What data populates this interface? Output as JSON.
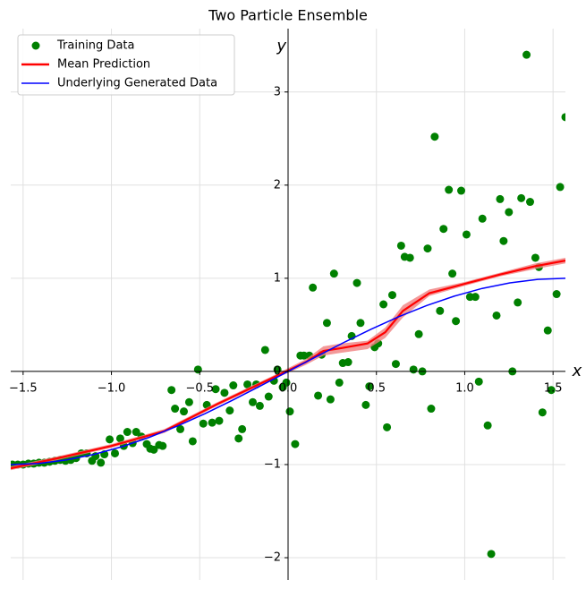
{
  "chart_data": {
    "type": "scatter",
    "title": "Two Particle Ensemble",
    "xlabel": "x",
    "ylabel": "y",
    "xlim": [
      -1.57,
      1.57
    ],
    "ylim": [
      -2.24,
      3.68
    ],
    "xticks": [
      {
        "value": -1.5,
        "label": "−1.5"
      },
      {
        "value": -1.0,
        "label": "−1.0"
      },
      {
        "value": -0.5,
        "label": "−0.5"
      },
      {
        "value": 0,
        "label": "0.0"
      },
      0.5,
      {
        "value": 1.0,
        "label": "1.0"
      },
      1.5
    ],
    "yticks": [
      {
        "value": -2,
        "label": "−2"
      },
      {
        "value": -1,
        "label": "−1"
      },
      0,
      1,
      2,
      3
    ],
    "grid": true,
    "legend": "upper left",
    "series": [
      {
        "name": "Training Data",
        "type": "scatter",
        "color": "#008000",
        "x": [
          -1.56,
          -1.53,
          -1.5,
          -1.47,
          -1.44,
          -1.41,
          -1.38,
          -1.35,
          -1.32,
          -1.29,
          -1.26,
          -1.23,
          -1.2,
          -1.17,
          -1.14,
          -1.11,
          -1.09,
          -1.06,
          -1.04,
          -1.01,
          -0.98,
          -0.95,
          -0.93,
          -0.91,
          -0.88,
          -0.86,
          -0.83,
          -0.8,
          -0.78,
          -0.76,
          -0.73,
          -0.71,
          -0.66,
          -0.64,
          -0.61,
          -0.59,
          -0.56,
          -0.54,
          -0.51,
          -0.48,
          -0.46,
          -0.43,
          -0.41,
          -0.39,
          -0.36,
          -0.33,
          -0.31,
          -0.28,
          -0.26,
          -0.23,
          -0.2,
          -0.18,
          -0.16,
          -0.13,
          -0.11,
          -0.08,
          -0.06,
          -0.03,
          -0.01,
          0.01,
          0.04,
          0.07,
          0.09,
          0.12,
          0.14,
          0.17,
          0.19,
          0.22,
          0.24,
          0.26,
          0.29,
          0.31,
          0.34,
          0.36,
          0.39,
          0.41,
          0.44,
          0.46,
          0.49,
          0.51,
          0.54,
          0.56,
          0.59,
          0.61,
          0.64,
          0.66,
          0.69,
          0.71,
          0.74,
          0.76,
          0.79,
          0.81,
          0.83,
          0.86,
          0.88,
          0.91,
          0.93,
          0.95,
          0.98,
          1.01,
          1.03,
          1.06,
          1.08,
          1.1,
          1.13,
          1.15,
          1.18,
          1.2,
          1.22,
          1.25,
          1.27,
          1.3,
          1.32,
          1.35,
          1.37,
          1.4,
          1.42,
          1.44,
          1.47,
          1.49,
          1.52,
          1.54,
          1.57
        ],
        "values": [
          -1.0,
          -1.0,
          -1.0,
          -0.99,
          -0.99,
          -0.98,
          -0.98,
          -0.97,
          -0.96,
          -0.95,
          -0.96,
          -0.95,
          -0.93,
          -0.88,
          -0.88,
          -0.96,
          -0.91,
          -0.98,
          -0.89,
          -0.73,
          -0.88,
          -0.72,
          -0.8,
          -0.65,
          -0.77,
          -0.65,
          -0.7,
          -0.78,
          -0.83,
          -0.84,
          -0.79,
          -0.8,
          -0.2,
          -0.4,
          -0.62,
          -0.43,
          -0.33,
          -0.75,
          0.02,
          -0.56,
          -0.36,
          -0.55,
          -0.19,
          -0.53,
          -0.23,
          -0.42,
          -0.15,
          -0.72,
          -0.62,
          -0.14,
          -0.33,
          -0.14,
          -0.37,
          0.23,
          -0.27,
          -0.1,
          0.02,
          -0.17,
          -0.12,
          -0.43,
          -0.78,
          0.17,
          0.17,
          0.17,
          0.9,
          -0.26,
          0.18,
          0.52,
          -0.3,
          1.05,
          -0.12,
          0.09,
          0.1,
          0.38,
          0.95,
          0.52,
          -0.36,
          -0.16,
          0.26,
          0.3,
          0.72,
          -0.6,
          0.82,
          0.08,
          1.35,
          1.23,
          1.22,
          0.02,
          0.4,
          0.0,
          1.32,
          -0.4,
          2.52,
          0.65,
          1.53,
          1.95,
          1.05,
          0.54,
          1.94,
          1.47,
          0.8,
          0.8,
          -0.11,
          1.64,
          -0.58,
          -1.96,
          0.6,
          1.85,
          1.4,
          1.71,
          0.0,
          0.74,
          1.86,
          3.4,
          1.82,
          1.22,
          1.12,
          -0.44,
          0.44,
          -0.2,
          0.83,
          1.98,
          2.73
        ]
      },
      {
        "name": "Mean Prediction",
        "type": "line",
        "color": "#ff0000",
        "band_color": "#f08080",
        "x": [
          -1.57,
          -1.3,
          -1.0,
          -0.7,
          -0.4,
          -0.1,
          0.1,
          0.2,
          0.3,
          0.45,
          0.55,
          0.65,
          0.8,
          1.0,
          1.2,
          1.4,
          1.57
        ],
        "values": [
          -1.04,
          -0.93,
          -0.8,
          -0.64,
          -0.35,
          -0.08,
          0.1,
          0.22,
          0.25,
          0.3,
          0.42,
          0.65,
          0.84,
          0.94,
          1.04,
          1.13,
          1.19
        ],
        "lower": [
          -1.06,
          -0.95,
          -0.82,
          -0.66,
          -0.37,
          -0.1,
          0.07,
          0.17,
          0.2,
          0.24,
          0.36,
          0.58,
          0.81,
          0.92,
          1.02,
          1.1,
          1.16
        ],
        "upper": [
          -1.02,
          -0.91,
          -0.78,
          -0.62,
          -0.33,
          -0.06,
          0.13,
          0.27,
          0.3,
          0.33,
          0.47,
          0.71,
          0.88,
          0.96,
          1.06,
          1.16,
          1.22
        ]
      },
      {
        "name": "Underlying Generated Data",
        "type": "line",
        "color": "#0000ff",
        "x": [
          -1.57,
          -1.413,
          -1.256,
          -1.099,
          -0.942,
          -0.785,
          -0.628,
          -0.471,
          -0.314,
          -0.157,
          0,
          0.157,
          0.314,
          0.471,
          0.628,
          0.785,
          0.942,
          1.099,
          1.256,
          1.413,
          1.57
        ],
        "values": [
          -1.0,
          -0.988,
          -0.951,
          -0.891,
          -0.809,
          -0.707,
          -0.588,
          -0.454,
          -0.309,
          -0.156,
          0,
          0.156,
          0.309,
          0.454,
          0.588,
          0.707,
          0.809,
          0.891,
          0.951,
          0.988,
          1.0
        ]
      }
    ]
  }
}
